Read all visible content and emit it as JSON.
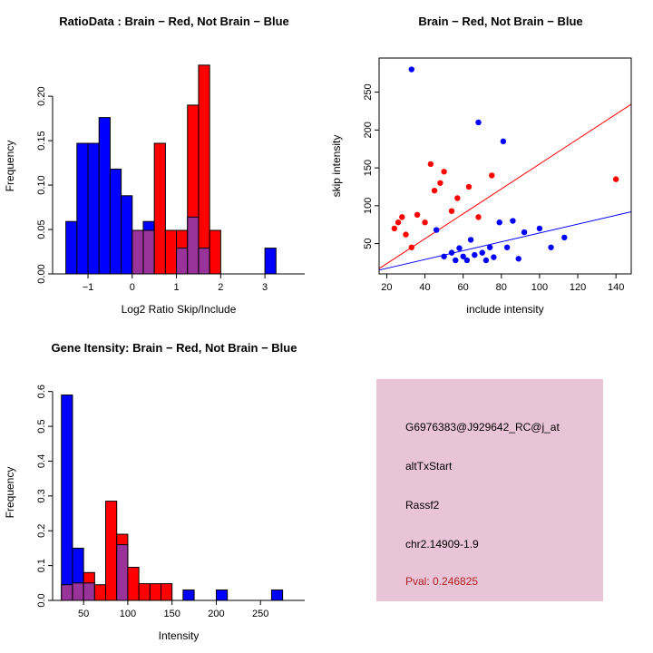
{
  "figure": {
    "bg": "#FFFFFF"
  },
  "colors": {
    "brain_red": "#FF0000",
    "not_brain_blue": "#0000FF",
    "overlap_purple": "#993399",
    "axis_black": "#000000",
    "info_box_bg": "#E9C3D6",
    "pval_red": "#B22222"
  },
  "chart_data": [
    {
      "type": "bar",
      "title": "RatioData : Brain − Red, Not Brain − Blue",
      "xlabel": "Log2 Ratio Skip/Include",
      "ylabel": "Frequency",
      "xlim": [
        -1.8,
        3.9
      ],
      "ylim": [
        0,
        0.243
      ],
      "xticks": [
        -1,
        0,
        1,
        2,
        3
      ],
      "xtick_labels": [
        "−1",
        "0",
        "1",
        "2",
        "3"
      ],
      "yticks": [
        0,
        0.05,
        0.1,
        0.15,
        0.2
      ],
      "ytick_labels": [
        "0.00",
        "0.05",
        "0.10",
        "0.15",
        "0.20"
      ],
      "bin_width": 0.25,
      "legend": {
        "red": "Brain",
        "blue": "Not Brain"
      },
      "bins": [
        {
          "x0": -1.5,
          "blue": 0.059,
          "red": 0
        },
        {
          "x0": -1.25,
          "blue": 0.147,
          "red": 0
        },
        {
          "x0": -1.0,
          "blue": 0.147,
          "red": 0
        },
        {
          "x0": -0.75,
          "blue": 0.176,
          "red": 0
        },
        {
          "x0": -0.5,
          "blue": 0.118,
          "red": 0
        },
        {
          "x0": -0.25,
          "blue": 0.088,
          "red": 0
        },
        {
          "x0": 0.0,
          "blue": 0.049,
          "red": 0.049
        },
        {
          "x0": 0.25,
          "blue": 0.059,
          "red": 0.049
        },
        {
          "x0": 0.5,
          "blue": 0,
          "red": 0.147
        },
        {
          "x0": 0.75,
          "blue": 0,
          "red": 0.049
        },
        {
          "x0": 1.0,
          "blue": 0.029,
          "red": 0.049
        },
        {
          "x0": 1.25,
          "blue": 0.064,
          "red": 0.19
        },
        {
          "x0": 1.5,
          "blue": 0.029,
          "red": 0.235
        },
        {
          "x0": 1.75,
          "blue": 0,
          "red": 0.049
        },
        {
          "x0": 3.0,
          "blue": 0.029,
          "red": 0
        }
      ]
    },
    {
      "type": "scatter",
      "title": "Brain − Red, Not Brain − Blue",
      "xlabel": "include intensity",
      "ylabel": "skip intensity",
      "xlim": [
        16,
        148
      ],
      "ylim": [
        10,
        295
      ],
      "xticks": [
        20,
        40,
        60,
        80,
        100,
        120,
        140
      ],
      "xtick_labels": [
        "20",
        "40",
        "60",
        "80",
        "100",
        "120",
        "140"
      ],
      "yticks": [
        50,
        100,
        150,
        200,
        250
      ],
      "ytick_labels": [
        "50",
        "100",
        "150",
        "200",
        "250"
      ],
      "series": [
        {
          "name": "Brain",
          "color_key": "brain_red",
          "points": [
            [
              24,
              70
            ],
            [
              26,
              78
            ],
            [
              28,
              85
            ],
            [
              30,
              62
            ],
            [
              33,
              45
            ],
            [
              36,
              88
            ],
            [
              40,
              78
            ],
            [
              43,
              155
            ],
            [
              45,
              120
            ],
            [
              48,
              130
            ],
            [
              50,
              145
            ],
            [
              54,
              93
            ],
            [
              57,
              110
            ],
            [
              63,
              125
            ],
            [
              68,
              85
            ],
            [
              75,
              140
            ],
            [
              140,
              135
            ]
          ]
        },
        {
          "name": "Not Brain",
          "color_key": "not_brain_blue",
          "points": [
            [
              33,
              280
            ],
            [
              46,
              68
            ],
            [
              50,
              33
            ],
            [
              54,
              38
            ],
            [
              56,
              28
            ],
            [
              58,
              44
            ],
            [
              60,
              33
            ],
            [
              62,
              28
            ],
            [
              64,
              55
            ],
            [
              66,
              35
            ],
            [
              68,
              210
            ],
            [
              70,
              38
            ],
            [
              72,
              28
            ],
            [
              74,
              45
            ],
            [
              76,
              32
            ],
            [
              79,
              78
            ],
            [
              81,
              185
            ],
            [
              83,
              45
            ],
            [
              86,
              80
            ],
            [
              89,
              30
            ],
            [
              92,
              65
            ],
            [
              100,
              70
            ],
            [
              106,
              45
            ],
            [
              113,
              58
            ]
          ]
        }
      ],
      "fit_lines": [
        {
          "color_key": "brain_red",
          "p1": [
            16,
            17
          ],
          "p2": [
            148,
            234
          ]
        },
        {
          "color_key": "not_brain_blue",
          "p1": [
            16,
            15
          ],
          "p2": [
            148,
            92
          ]
        }
      ]
    },
    {
      "type": "bar",
      "title": "Gene Itensity: Brain − Red, Not Brain − Blue",
      "xlabel": "Intensity",
      "ylabel": "Frequency",
      "xlim": [
        15,
        300
      ],
      "ylim": [
        0,
        0.62
      ],
      "xticks": [
        50,
        100,
        150,
        200,
        250
      ],
      "xtick_labels": [
        "50",
        "100",
        "150",
        "200",
        "250"
      ],
      "yticks": [
        0,
        0.1,
        0.2,
        0.3,
        0.4,
        0.5,
        0.6
      ],
      "ytick_labels": [
        "0.0",
        "0.1",
        "0.2",
        "0.3",
        "0.4",
        "0.5",
        "0.6"
      ],
      "bin_width": 12.5,
      "legend": {
        "red": "Brain",
        "blue": "Not Brain"
      },
      "bins": [
        {
          "x0": 25,
          "blue": 0.59,
          "red": 0.045
        },
        {
          "x0": 37.5,
          "blue": 0.15,
          "red": 0.05
        },
        {
          "x0": 50,
          "blue": 0.05,
          "red": 0.08
        },
        {
          "x0": 62.5,
          "blue": 0,
          "red": 0.045
        },
        {
          "x0": 75,
          "blue": 0,
          "red": 0.285
        },
        {
          "x0": 87.5,
          "blue": 0.16,
          "red": 0.19
        },
        {
          "x0": 100,
          "blue": 0,
          "red": 0.095
        },
        {
          "x0": 112.5,
          "blue": 0,
          "red": 0.048
        },
        {
          "x0": 125,
          "blue": 0,
          "red": 0.048
        },
        {
          "x0": 137.5,
          "blue": 0,
          "red": 0.048
        },
        {
          "x0": 162.5,
          "blue": 0.03,
          "red": 0
        },
        {
          "x0": 200,
          "blue": 0.03,
          "red": 0
        },
        {
          "x0": 262.5,
          "blue": 0.03,
          "red": 0
        }
      ]
    }
  ],
  "info_box": {
    "probe_id": "G6976383@J929642_RC@j_at",
    "event_type": "altTxStart",
    "gene": "Rassf2",
    "locus": "chr2.14909-1.9",
    "pval": "Pval: 0.246825"
  }
}
